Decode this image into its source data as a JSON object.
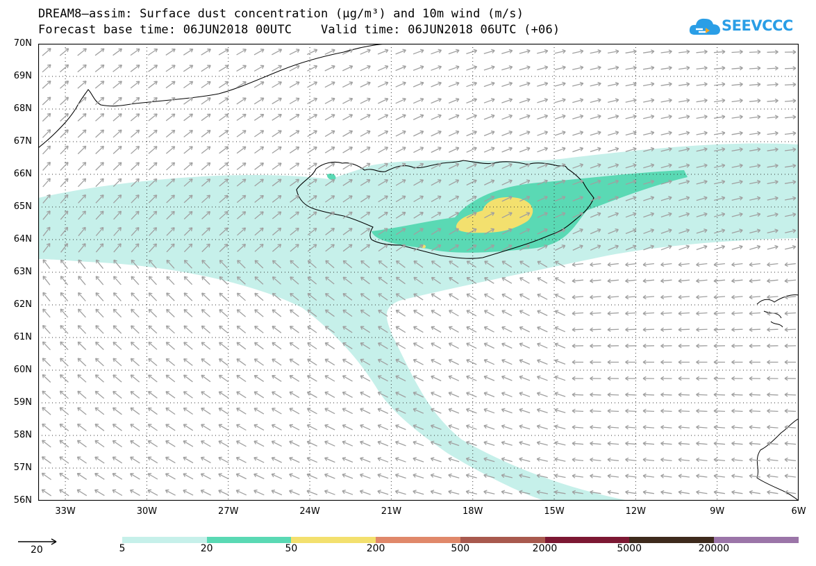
{
  "header": {
    "title_line1": "DREAM8–assim: Surface dust concentration (µg/m³) and 10m wind (m/s)",
    "title_line2": "Forecast base time: 06JUN2018 00UTC    Valid time: 06JUN2018 06UTC (+06)"
  },
  "logo": {
    "text": "SEEVCCC",
    "icon": "cloud-icon",
    "color": "#2a9ee6"
  },
  "map": {
    "lat_labels": [
      "70N",
      "69N",
      "68N",
      "67N",
      "66N",
      "65N",
      "64N",
      "63N",
      "62N",
      "61N",
      "60N",
      "59N",
      "58N",
      "57N",
      "56N"
    ],
    "lon_labels": [
      "33W",
      "30W",
      "27W",
      "24W",
      "21W",
      "18W",
      "15W",
      "12W",
      "9W",
      "6W"
    ],
    "extent": {
      "lon_min": -34,
      "lon_max": -6,
      "lat_min": 56,
      "lat_max": 70
    },
    "wind_arrow_color": "#a0a0a0",
    "coastline_color": "#000000"
  },
  "legend": {
    "wind_reference": "20",
    "levels": [
      "5",
      "20",
      "50",
      "200",
      "500",
      "2000",
      "5000",
      "20000"
    ],
    "colors": [
      "#c6f0ea",
      "#5ad9b4",
      "#f3e06e",
      "#e0886a",
      "#a8594e",
      "#7c1833",
      "#3e2a1c",
      "#9b75a8"
    ]
  }
}
